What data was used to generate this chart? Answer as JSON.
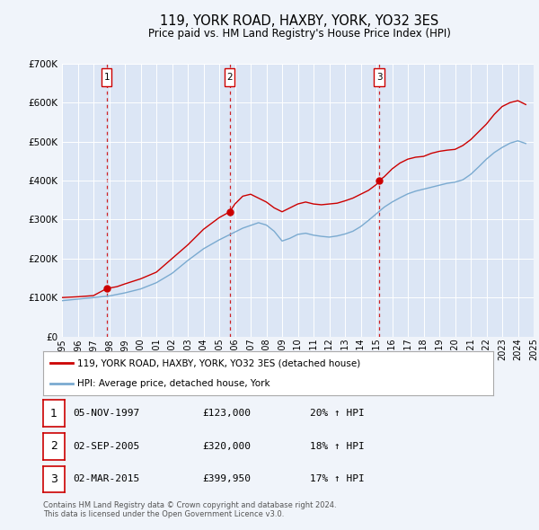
{
  "title": "119, YORK ROAD, HAXBY, YORK, YO32 3ES",
  "subtitle": "Price paid vs. HM Land Registry's House Price Index (HPI)",
  "title_fontsize": 10.5,
  "subtitle_fontsize": 8.5,
  "bg_color": "#f0f4fa",
  "plot_bg_color": "#dce6f5",
  "grid_color": "#ffffff",
  "legend_label_red": "119, YORK ROAD, HAXBY, YORK, YO32 3ES (detached house)",
  "legend_label_blue": "HPI: Average price, detached house, York",
  "footer": "Contains HM Land Registry data © Crown copyright and database right 2024.\nThis data is licensed under the Open Government Licence v3.0.",
  "purchases": [
    {
      "label": "1",
      "date_str": "05-NOV-1997",
      "date_x": 1997.84,
      "price": 123000,
      "hpi_pct": "20%"
    },
    {
      "label": "2",
      "date_str": "02-SEP-2005",
      "date_x": 2005.67,
      "price": 320000,
      "hpi_pct": "18%"
    },
    {
      "label": "3",
      "date_str": "02-MAR-2015",
      "date_x": 2015.17,
      "price": 399950,
      "hpi_pct": "17%"
    }
  ],
  "red_line_color": "#cc0000",
  "blue_line_color": "#7aaad0",
  "dashed_line_color": "#cc0000",
  "ylim": [
    0,
    700000
  ],
  "yticks": [
    0,
    100000,
    200000,
    300000,
    400000,
    500000,
    600000,
    700000
  ],
  "xlim": [
    1995,
    2025
  ],
  "xticks": [
    1995,
    1996,
    1997,
    1998,
    1999,
    2000,
    2001,
    2002,
    2003,
    2004,
    2005,
    2006,
    2007,
    2008,
    2009,
    2010,
    2011,
    2012,
    2013,
    2014,
    2015,
    2016,
    2017,
    2018,
    2019,
    2020,
    2021,
    2022,
    2023,
    2024,
    2025
  ],
  "red_line_x": [
    1995.0,
    1996.0,
    1997.0,
    1997.84,
    1998.5,
    1999.0,
    2000.0,
    2001.0,
    2002.0,
    2003.0,
    2004.0,
    2005.0,
    2005.67,
    2006.0,
    2006.5,
    2007.0,
    2007.5,
    2008.0,
    2008.5,
    2009.0,
    2009.5,
    2010.0,
    2010.5,
    2011.0,
    2011.5,
    2012.0,
    2012.5,
    2013.0,
    2013.5,
    2014.0,
    2014.5,
    2015.0,
    2015.17,
    2015.5,
    2016.0,
    2016.5,
    2017.0,
    2017.5,
    2018.0,
    2018.5,
    2019.0,
    2019.5,
    2020.0,
    2020.5,
    2021.0,
    2021.5,
    2022.0,
    2022.5,
    2023.0,
    2023.5,
    2024.0,
    2024.5
  ],
  "red_line_y": [
    100000,
    102000,
    105000,
    123000,
    128000,
    135000,
    148000,
    165000,
    200000,
    235000,
    275000,
    305000,
    320000,
    340000,
    360000,
    365000,
    355000,
    345000,
    330000,
    320000,
    330000,
    340000,
    345000,
    340000,
    338000,
    340000,
    342000,
    348000,
    355000,
    365000,
    375000,
    390000,
    399950,
    410000,
    430000,
    445000,
    455000,
    460000,
    462000,
    470000,
    475000,
    478000,
    480000,
    490000,
    505000,
    525000,
    545000,
    570000,
    590000,
    600000,
    605000,
    595000
  ],
  "blue_line_x": [
    1995.0,
    1996.0,
    1997.0,
    1998.0,
    1999.0,
    2000.0,
    2001.0,
    2002.0,
    2003.0,
    2004.0,
    2005.0,
    2005.5,
    2006.0,
    2006.5,
    2007.0,
    2007.5,
    2008.0,
    2008.5,
    2009.0,
    2009.5,
    2010.0,
    2010.5,
    2011.0,
    2011.5,
    2012.0,
    2012.5,
    2013.0,
    2013.5,
    2014.0,
    2014.5,
    2015.0,
    2015.5,
    2016.0,
    2016.5,
    2017.0,
    2017.5,
    2018.0,
    2018.5,
    2019.0,
    2019.5,
    2020.0,
    2020.5,
    2021.0,
    2021.5,
    2022.0,
    2022.5,
    2023.0,
    2023.5,
    2024.0,
    2024.5
  ],
  "blue_line_y": [
    92000,
    96000,
    100000,
    104000,
    112000,
    122000,
    138000,
    162000,
    195000,
    225000,
    248000,
    258000,
    268000,
    278000,
    285000,
    292000,
    286000,
    270000,
    245000,
    252000,
    262000,
    265000,
    260000,
    257000,
    255000,
    258000,
    263000,
    270000,
    282000,
    298000,
    315000,
    332000,
    345000,
    356000,
    366000,
    373000,
    378000,
    383000,
    388000,
    393000,
    396000,
    402000,
    416000,
    435000,
    455000,
    472000,
    485000,
    496000,
    502000,
    495000
  ]
}
